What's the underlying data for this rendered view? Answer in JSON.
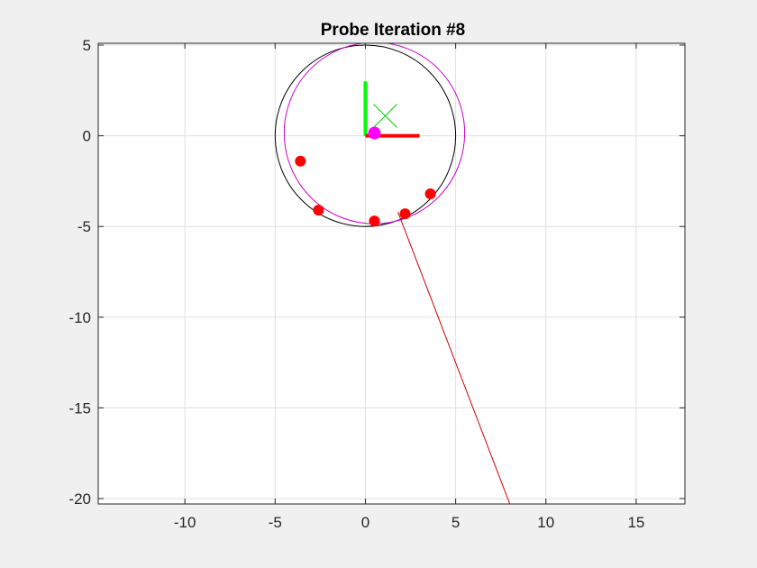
{
  "chart_data": {
    "type": "scatter",
    "title": "Probe Iteration #8",
    "xlabel": "",
    "ylabel": "",
    "xlim": [
      -14.8,
      17.7
    ],
    "ylim": [
      -20.3,
      5.1
    ],
    "xticks": [
      -10,
      -5,
      0,
      5,
      10,
      15
    ],
    "yticks": [
      5,
      0,
      -5,
      -10,
      -15,
      -20
    ],
    "xtick_labels": [
      "-10",
      "-5",
      "0",
      "5",
      "10",
      "15"
    ],
    "ytick_labels": [
      "5",
      "0",
      "-5",
      "-10",
      "-15",
      "-20"
    ],
    "grid": true,
    "colors": {
      "background": "#ffffff",
      "figure": "#f0f0f0",
      "grid": "#dfdfdf",
      "axis": "#262626",
      "probe_points": "#ff0000",
      "nominal_circle": "#000000",
      "fitted_circle": "#cc00cc",
      "fitted_center": "#ff00ff",
      "x_axis_arrow": "#ff0000",
      "y_axis_arrow": "#00ff00",
      "target_marker": "#00cc00",
      "probe_line": "#cc0000"
    },
    "probe_points": {
      "x": [
        -3.6,
        -2.6,
        0.5,
        2.2,
        3.6
      ],
      "y": [
        -1.4,
        -4.1,
        -4.7,
        -4.3,
        -3.2
      ]
    },
    "nominal_circle": {
      "center": [
        0,
        0
      ],
      "radius": 5.0
    },
    "fitted_circle": {
      "center": [
        0.5,
        0.15
      ],
      "radius": 5.0
    },
    "fitted_center": [
      0.5,
      0.15
    ],
    "target_marker": [
      1.1,
      1.1
    ],
    "x_axis_arrow": {
      "from": [
        0,
        0
      ],
      "to": [
        3,
        0
      ]
    },
    "y_axis_arrow": {
      "from": [
        0,
        0
      ],
      "to": [
        0,
        3
      ]
    },
    "probe_line": {
      "from": [
        1.8,
        -4.2
      ],
      "to": [
        8.0,
        -20.3
      ]
    }
  }
}
